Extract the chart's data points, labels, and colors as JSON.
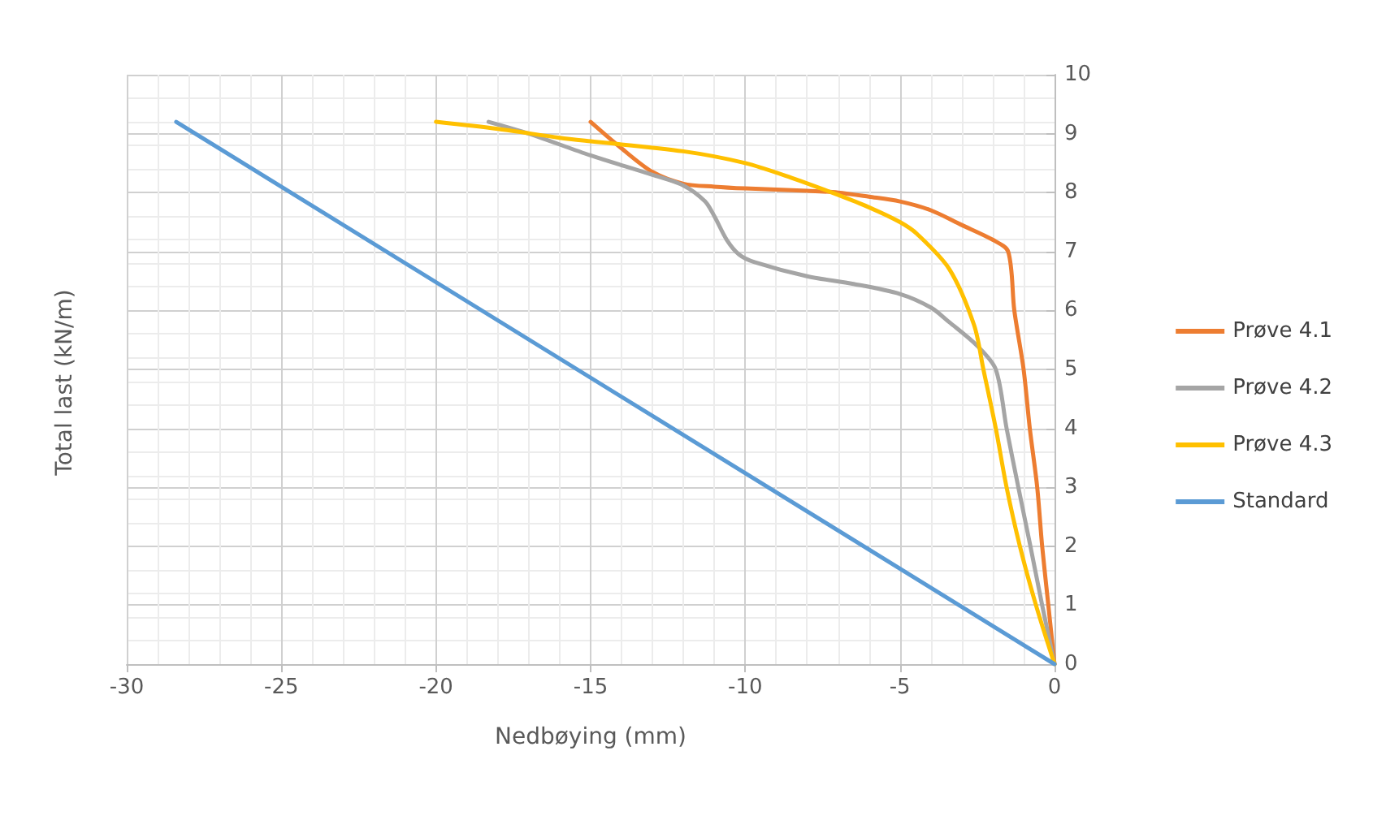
{
  "chart_data": {
    "type": "line",
    "xlabel": "Nedbøying (mm)",
    "ylabel": "Total last (kN/m)",
    "xlim": [
      -30,
      0
    ],
    "xticks": [
      -30,
      -25,
      -20,
      -15,
      -10,
      -5,
      0
    ],
    "ylim": [
      0,
      10
    ],
    "yticks": [
      0,
      1,
      2,
      3,
      4,
      5,
      6,
      7,
      8,
      9,
      10
    ],
    "grid": true,
    "legend": "right",
    "marker": "none",
    "line_style": "solid",
    "series": [
      {
        "name": "Prøve 4.1",
        "color": "#ed7d31",
        "x": [
          -15,
          -14,
          -13,
          -12,
          -11,
          -10,
          -8,
          -7,
          -6,
          -5,
          -4,
          -3,
          -2,
          -1.5,
          -1.3,
          -1,
          -0.8,
          -0.56,
          -0.4,
          -0.2,
          0
        ],
        "values": [
          9.2,
          8.75,
          8.35,
          8.15,
          8.1,
          8.07,
          8.03,
          8,
          7.93,
          7.85,
          7.7,
          7.45,
          7.2,
          7,
          6,
          5,
          4,
          3,
          2,
          1,
          0
        ]
      },
      {
        "name": "Prøve 4.2",
        "color": "#a5a5a5",
        "x": [
          -18.3,
          -17,
          -15,
          -13,
          -12,
          -11.3,
          -11,
          -10.6,
          -10.2,
          -9.7,
          -8,
          -6.5,
          -5,
          -4,
          -3.4,
          -2.5,
          -1.9,
          -1.55,
          -1.17,
          -0.78,
          -0.4,
          0
        ],
        "values": [
          9.2,
          9,
          8.63,
          8.3,
          8.12,
          7.85,
          7.6,
          7.2,
          6.95,
          6.82,
          6.58,
          6.45,
          6.28,
          6.05,
          5.8,
          5.4,
          5,
          4,
          3,
          2,
          1,
          0
        ]
      },
      {
        "name": "Prøve 4.3",
        "color": "#ffc000",
        "x": [
          -20,
          -18,
          -16,
          -15,
          -12,
          -10,
          -8.5,
          -7.2,
          -6,
          -5,
          -4.45,
          -3.4,
          -2.6,
          -2.3,
          -1.9,
          -1.55,
          -1.12,
          -0.6,
          0
        ],
        "values": [
          9.2,
          9.08,
          8.93,
          8.87,
          8.7,
          8.5,
          8.25,
          8,
          7.75,
          7.5,
          7.3,
          6.7,
          5.75,
          5,
          4,
          3,
          2,
          1,
          0
        ]
      },
      {
        "name": "Standard",
        "color": "#5b9bd5",
        "x": [
          -28.4,
          0
        ],
        "values": [
          9.2,
          0
        ]
      }
    ]
  }
}
